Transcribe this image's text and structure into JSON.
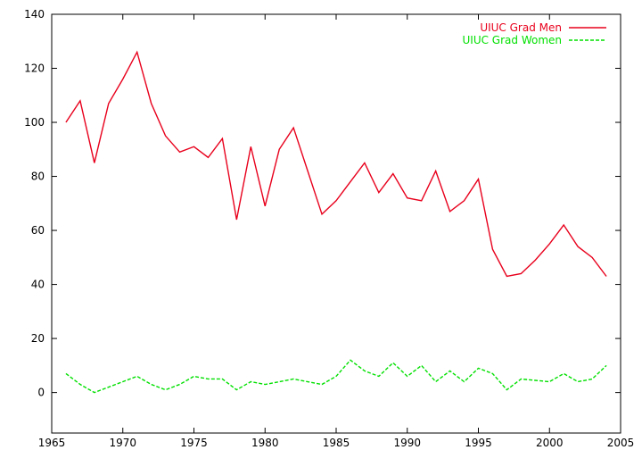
{
  "chart_data": {
    "type": "line",
    "title": "",
    "xlabel": "",
    "ylabel": "",
    "xlim": [
      1965,
      2005
    ],
    "ylim": [
      -15,
      140
    ],
    "x_ticks": [
      1965,
      1970,
      1975,
      1980,
      1985,
      1990,
      1995,
      2000,
      2005
    ],
    "y_ticks": [
      0,
      20,
      40,
      60,
      80,
      100,
      120,
      140
    ],
    "grid": false,
    "legend_position": "top-right",
    "series": [
      {
        "name": "UIUC Grad Men",
        "color": "#e8001c",
        "dash": "solid",
        "x": [
          1966,
          1967,
          1968,
          1969,
          1970,
          1971,
          1972,
          1973,
          1974,
          1975,
          1976,
          1977,
          1978,
          1979,
          1980,
          1981,
          1982,
          1983,
          1984,
          1985,
          1986,
          1987,
          1988,
          1989,
          1990,
          1991,
          1992,
          1993,
          1994,
          1995,
          1996,
          1997,
          1998,
          1999,
          2000,
          2001,
          2002,
          2003,
          2004
        ],
        "y": [
          100,
          108,
          85,
          107,
          116,
          126,
          107,
          95,
          89,
          91,
          87,
          94,
          64,
          91,
          69,
          90,
          98,
          82,
          66,
          71,
          78,
          85,
          74,
          81,
          72,
          71,
          82,
          67,
          71,
          79,
          53,
          43,
          44,
          49,
          55,
          62,
          54,
          50,
          43
        ]
      },
      {
        "name": "UIUC Grad Women",
        "color": "#00e000",
        "dash": "dashed",
        "x": [
          1966,
          1967,
          1968,
          1969,
          1970,
          1971,
          1972,
          1973,
          1974,
          1975,
          1976,
          1977,
          1978,
          1979,
          1980,
          1981,
          1982,
          1983,
          1984,
          1985,
          1986,
          1987,
          1988,
          1989,
          1990,
          1991,
          1992,
          1993,
          1994,
          1995,
          1996,
          1997,
          1998,
          1999,
          2000,
          2001,
          2002,
          2003,
          2004
        ],
        "y": [
          7,
          3,
          0,
          2,
          4,
          6,
          3,
          1,
          3,
          6,
          5,
          5,
          1,
          4,
          3,
          4,
          5,
          4,
          3,
          6,
          12,
          8,
          6,
          11,
          6,
          10,
          4,
          8,
          4,
          9,
          7,
          1,
          5,
          4.5,
          4,
          7,
          4,
          5,
          10
        ]
      }
    ]
  }
}
